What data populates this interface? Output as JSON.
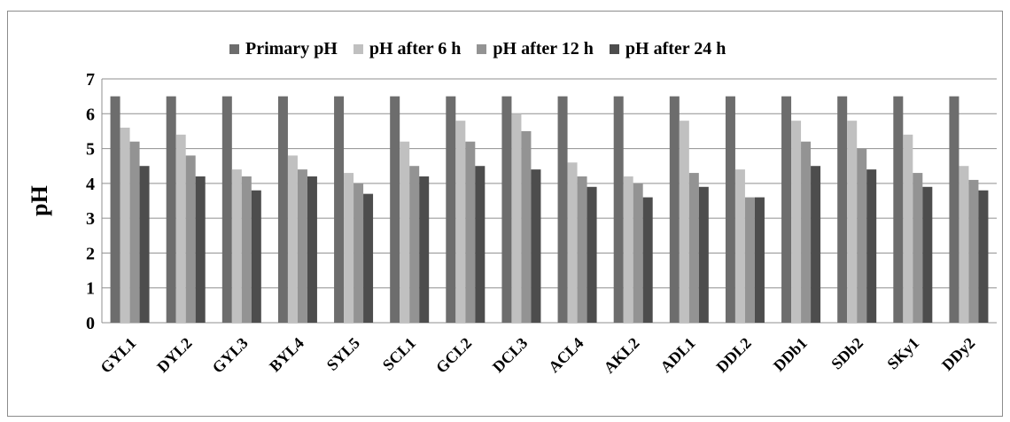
{
  "chart_data": {
    "type": "bar",
    "ylabel": "pH",
    "ylim": [
      0,
      7
    ],
    "yticks": [
      0,
      1,
      2,
      3,
      4,
      5,
      6,
      7
    ],
    "grid": "horizontal",
    "legend_position": "top",
    "categories": [
      "GYL1",
      "DYL2",
      "GYL3",
      "BYL4",
      "SYL5",
      "SCL1",
      "GCL2",
      "DCL3",
      "ACL4",
      "AKL2",
      "ADL1",
      "DDL2",
      "DDb1",
      "SDb2",
      "SKy1",
      "DDy2"
    ],
    "series": [
      {
        "name": "Primary pH",
        "color": "#6d6d6d",
        "values": [
          6.5,
          6.5,
          6.5,
          6.5,
          6.5,
          6.5,
          6.5,
          6.5,
          6.5,
          6.5,
          6.5,
          6.5,
          6.5,
          6.5,
          6.5,
          6.5
        ]
      },
      {
        "name": "pH after 6 h",
        "color": "#c0c0c0",
        "values": [
          5.6,
          5.4,
          4.4,
          4.8,
          4.3,
          5.2,
          5.8,
          6.0,
          4.6,
          4.2,
          5.8,
          4.4,
          5.8,
          5.8,
          5.4,
          4.5
        ]
      },
      {
        "name": "pH after 12 h",
        "color": "#939393",
        "values": [
          5.2,
          4.8,
          4.2,
          4.4,
          4.0,
          4.5,
          5.2,
          5.5,
          4.2,
          4.0,
          4.3,
          3.6,
          5.2,
          5.0,
          4.3,
          4.1
        ]
      },
      {
        "name": "pH after 24 h",
        "color": "#4d4d4d",
        "values": [
          4.5,
          4.2,
          3.8,
          4.2,
          3.7,
          4.2,
          4.5,
          4.4,
          3.9,
          3.6,
          3.9,
          3.6,
          4.5,
          4.4,
          3.9,
          3.8
        ]
      }
    ]
  }
}
